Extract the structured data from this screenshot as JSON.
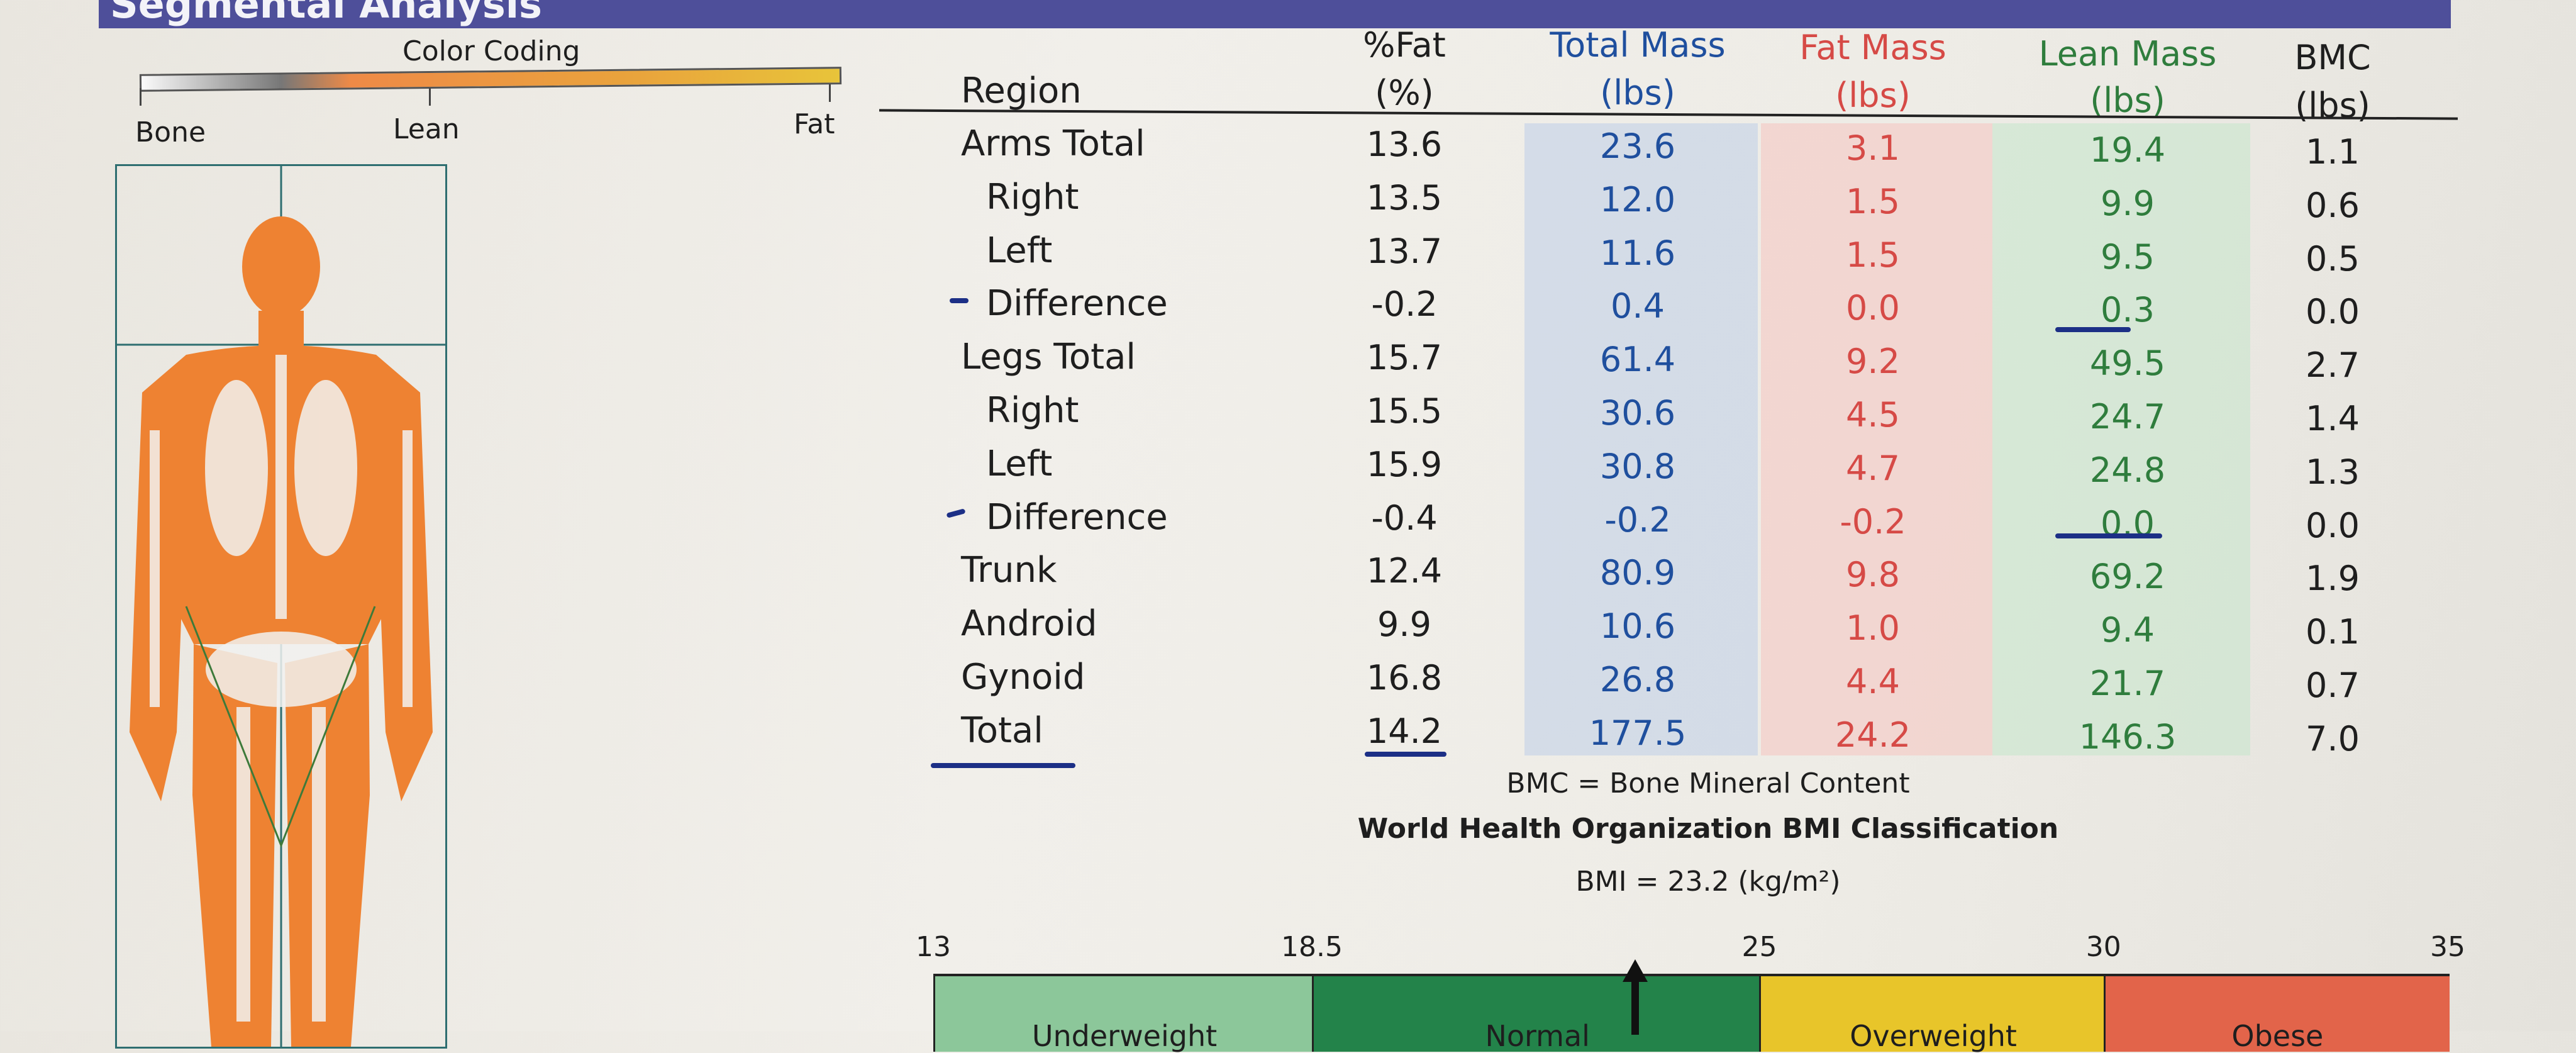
{
  "section_title": "Segmental Analysis",
  "color_coding": {
    "title": "Color Coding",
    "labels": [
      "Bone",
      "Lean",
      "Fat"
    ]
  },
  "table": {
    "headers": [
      {
        "label": "Region",
        "unit": ""
      },
      {
        "label": "%Fat",
        "unit": "(%)"
      },
      {
        "label": "Total Mass",
        "unit": "(lbs)"
      },
      {
        "label": "Fat Mass",
        "unit": "(lbs)"
      },
      {
        "label": "Lean Mass",
        "unit": "(lbs)"
      },
      {
        "label": "BMC",
        "unit": "(lbs)"
      }
    ],
    "rows": [
      {
        "region": "Arms Total",
        "fat_pct": "13.6",
        "total": "23.6",
        "fat": "3.1",
        "lean": "19.4",
        "bmc": "1.1"
      },
      {
        "region": "Right",
        "fat_pct": "13.5",
        "total": "12.0",
        "fat": "1.5",
        "lean": "9.9",
        "bmc": "0.6"
      },
      {
        "region": "Left",
        "fat_pct": "13.7",
        "total": "11.6",
        "fat": "1.5",
        "lean": "9.5",
        "bmc": "0.5"
      },
      {
        "region": "Difference",
        "fat_pct": "-0.2",
        "total": "0.4",
        "fat": "0.0",
        "lean": "0.3",
        "bmc": "0.0"
      },
      {
        "region": "Legs Total",
        "fat_pct": "15.7",
        "total": "61.4",
        "fat": "9.2",
        "lean": "49.5",
        "bmc": "2.7"
      },
      {
        "region": "Right",
        "fat_pct": "15.5",
        "total": "30.6",
        "fat": "4.5",
        "lean": "24.7",
        "bmc": "1.4"
      },
      {
        "region": "Left",
        "fat_pct": "15.9",
        "total": "30.8",
        "fat": "4.7",
        "lean": "24.8",
        "bmc": "1.3"
      },
      {
        "region": "Difference",
        "fat_pct": "-0.4",
        "total": "-0.2",
        "fat": "-0.2",
        "lean": "0.0",
        "bmc": "0.0"
      },
      {
        "region": "Trunk",
        "fat_pct": "12.4",
        "total": "80.9",
        "fat": "9.8",
        "lean": "69.2",
        "bmc": "1.9"
      },
      {
        "region": "Android",
        "fat_pct": "9.9",
        "total": "10.6",
        "fat": "1.0",
        "lean": "9.4",
        "bmc": "0.1"
      },
      {
        "region": "Gynoid",
        "fat_pct": "16.8",
        "total": "26.8",
        "fat": "4.4",
        "lean": "21.7",
        "bmc": "0.7"
      },
      {
        "region": "Total",
        "fat_pct": "14.2",
        "total": "177.5",
        "fat": "24.2",
        "lean": "146.3",
        "bmc": "7.0"
      }
    ]
  },
  "footnote": "BMC = Bone Mineral Content",
  "bmi": {
    "title": "World Health Organization BMI Classification",
    "value_text": "BMI = 23.2 (kg/m²)",
    "value": 23.2,
    "scale_ticks": [
      "13",
      "18.5",
      "25",
      "30",
      "35"
    ],
    "categories": [
      {
        "label": "Underweight",
        "color": "#8cc79a"
      },
      {
        "label": "Normal",
        "color": "#23834a"
      },
      {
        "label": "Overweight",
        "color": "#e8c52a"
      },
      {
        "label": "Obese",
        "color": "#e2644a"
      }
    ]
  },
  "colors": {
    "total_mass": "#1f4f9e",
    "fat_mass": "#d64a46",
    "lean_mass": "#2f7d3d",
    "header": "#4e4f9a"
  }
}
